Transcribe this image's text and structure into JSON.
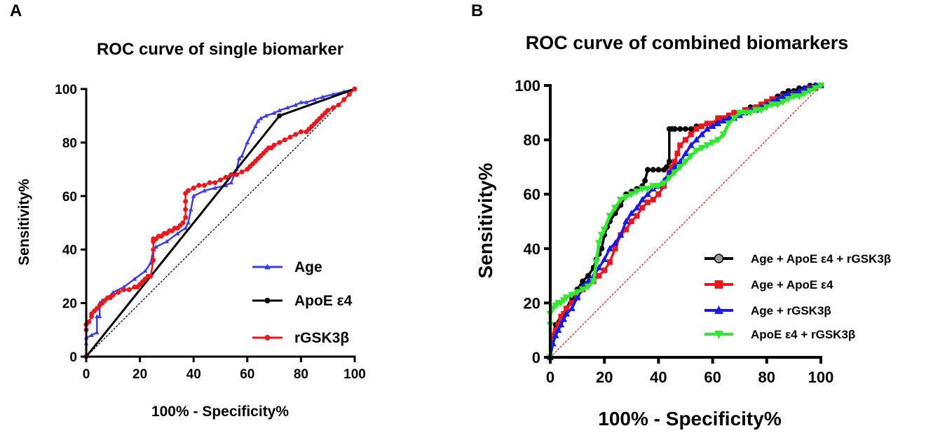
{
  "chart_data": [
    {
      "type": "line",
      "panel": "A",
      "title": "ROC curve of single biomarker",
      "xlabel": "100% - Specificity%",
      "ylabel": "Sensitivity%",
      "xlim": [
        0,
        100
      ],
      "ylim": [
        0,
        100
      ],
      "xticks": [
        "0",
        "20",
        "40",
        "60",
        "80",
        "100"
      ],
      "yticks": [
        "0",
        "20",
        "40",
        "60",
        "80",
        "100"
      ],
      "legend_position": "bottom-right",
      "reference_line": {
        "name": "chance",
        "x": [
          0,
          100
        ],
        "y": [
          0,
          100
        ],
        "color": "#000000"
      },
      "series": [
        {
          "name": "Age",
          "color": "#3c3ce6",
          "marker": "triangle",
          "x": [
            0,
            0,
            0,
            2,
            4,
            4,
            5,
            5,
            6,
            8,
            10,
            14,
            18,
            22,
            24,
            25,
            26,
            30,
            34,
            37,
            38,
            39,
            40,
            44,
            48,
            52,
            54,
            56,
            57,
            58,
            60,
            62,
            63,
            64,
            65,
            67,
            70,
            72,
            75,
            78,
            80,
            82,
            85,
            88,
            92,
            96,
            100
          ],
          "y": [
            0,
            5,
            7,
            8,
            9,
            15,
            15,
            20,
            21,
            22,
            24,
            26,
            29,
            32,
            35,
            40,
            41,
            43,
            46,
            48,
            50,
            55,
            60,
            62,
            63,
            64,
            65,
            70,
            74,
            75,
            80,
            84,
            86,
            88,
            89,
            90,
            91,
            92,
            93,
            94,
            95,
            95,
            96,
            97,
            98,
            99,
            100
          ]
        },
        {
          "name": "ApoE ε4",
          "color": "#000000",
          "marker": "circle",
          "x": [
            0,
            72,
            100
          ],
          "y": [
            0,
            90,
            100
          ]
        },
        {
          "name": "rGSK3β",
          "color": "#e8191e",
          "marker": "circle",
          "x": [
            0,
            0,
            0,
            1,
            2,
            2,
            3,
            4,
            5,
            6,
            7,
            8,
            9,
            10,
            12,
            14,
            16,
            18,
            19,
            20,
            21,
            22,
            23,
            24,
            25,
            25,
            25,
            25,
            26,
            27,
            28,
            29,
            30,
            31,
            32,
            33,
            34,
            35,
            36,
            37,
            37,
            37,
            37,
            38,
            40,
            42,
            44,
            46,
            48,
            50,
            52,
            54,
            56,
            58,
            60,
            61,
            62,
            63,
            64,
            65,
            66,
            67,
            68,
            69,
            70,
            72,
            74,
            76,
            78,
            80,
            82,
            83,
            84,
            85,
            86,
            87,
            88,
            89,
            90,
            92,
            94,
            96,
            98,
            100
          ],
          "y": [
            0,
            10,
            12,
            13,
            15,
            16,
            17,
            18,
            19,
            20,
            21,
            22,
            22,
            23,
            24,
            25,
            25,
            26,
            26,
            27,
            28,
            29,
            30,
            30,
            36,
            40,
            43,
            44,
            44,
            45,
            45,
            46,
            46,
            47,
            47,
            48,
            48,
            49,
            50,
            52,
            55,
            58,
            61,
            62,
            63,
            64,
            64,
            65,
            65,
            66,
            67,
            68,
            68,
            69,
            70,
            71,
            72,
            73,
            74,
            75,
            76,
            77,
            78,
            78,
            79,
            80,
            81,
            82,
            83,
            84,
            84,
            85,
            86,
            87,
            88,
            89,
            90,
            91,
            92,
            93,
            94,
            96,
            98,
            100
          ]
        }
      ]
    },
    {
      "type": "line",
      "panel": "B",
      "title": "ROC curve of combined biomarkers",
      "xlabel": "100% - Specificity%",
      "ylabel": "Sensitivity%",
      "xlim": [
        0,
        100
      ],
      "ylim": [
        0,
        100
      ],
      "xticks": [
        "0",
        "20",
        "40",
        "60",
        "80",
        "100"
      ],
      "yticks": [
        "0",
        "20",
        "40",
        "60",
        "80",
        "100"
      ],
      "legend_position": "bottom-right",
      "reference_line": {
        "name": "chance",
        "x": [
          0,
          100
        ],
        "y": [
          0,
          100
        ],
        "color": "#e8191e"
      },
      "series": [
        {
          "name": "Age + ApoE ε4 + rGSK3β",
          "color": "#000000",
          "marker": "circle",
          "x": [
            0,
            1,
            2,
            4,
            6,
            8,
            10,
            12,
            14,
            16,
            17,
            18,
            19,
            20,
            21,
            22,
            24,
            26,
            28,
            30,
            32,
            33,
            34,
            35,
            36,
            38,
            40,
            42,
            43,
            44,
            44,
            45,
            46,
            48,
            50,
            52,
            54,
            56,
            58,
            60,
            62,
            64,
            66,
            68,
            70,
            72,
            74,
            76,
            78,
            80,
            82,
            84,
            86,
            88,
            90,
            92,
            94,
            96,
            98,
            100
          ],
          "y": [
            0,
            8,
            12,
            15,
            18,
            22,
            25,
            28,
            30,
            33,
            36,
            38,
            40,
            45,
            48,
            50,
            53,
            56,
            60,
            61,
            62,
            62,
            63,
            65,
            69,
            69,
            69,
            69,
            70,
            72,
            84,
            84,
            84,
            84,
            84,
            84,
            85,
            85,
            86,
            86,
            87,
            88,
            89,
            90,
            90,
            91,
            92,
            92,
            93,
            94,
            95,
            96,
            97,
            98,
            98,
            99,
            99,
            100,
            100,
            100
          ]
        },
        {
          "name": "Age + ApoE ε4",
          "color": "#e8191e",
          "marker": "square",
          "x": [
            0,
            1,
            2,
            3,
            4,
            5,
            6,
            8,
            10,
            12,
            14,
            16,
            18,
            20,
            22,
            24,
            26,
            28,
            30,
            32,
            34,
            36,
            38,
            40,
            42,
            44,
            45,
            46,
            47,
            48,
            50,
            52,
            54,
            56,
            58,
            60,
            62,
            64,
            66,
            68,
            70,
            72,
            74,
            76,
            78,
            80,
            82,
            84,
            86,
            88,
            90,
            92,
            94,
            96,
            98,
            100
          ],
          "y": [
            0,
            8,
            10,
            12,
            15,
            16,
            18,
            20,
            22,
            25,
            27,
            28,
            30,
            32,
            35,
            40,
            45,
            47,
            50,
            52,
            55,
            57,
            58,
            60,
            63,
            68,
            70,
            72,
            75,
            78,
            80,
            82,
            84,
            85,
            86,
            86,
            88,
            88,
            89,
            90,
            90,
            91,
            91,
            92,
            93,
            94,
            95,
            95,
            96,
            96,
            97,
            97,
            98,
            99,
            99,
            100
          ]
        },
        {
          "name": "Age +  rGSK3β",
          "color": "#1919e6",
          "marker": "triangle",
          "x": [
            0,
            1,
            2,
            3,
            4,
            5,
            6,
            8,
            10,
            12,
            14,
            16,
            18,
            20,
            22,
            24,
            26,
            28,
            30,
            32,
            34,
            36,
            38,
            40,
            42,
            44,
            46,
            48,
            50,
            52,
            54,
            56,
            58,
            60,
            62,
            64,
            66,
            68,
            70,
            72,
            74,
            76,
            78,
            80,
            82,
            84,
            86,
            88,
            90,
            92,
            94,
            96,
            98,
            100
          ],
          "y": [
            0,
            5,
            8,
            10,
            12,
            14,
            16,
            18,
            22,
            26,
            28,
            30,
            33,
            36,
            40,
            42,
            45,
            50,
            53,
            55,
            58,
            60,
            62,
            63,
            65,
            68,
            70,
            72,
            75,
            78,
            80,
            82,
            84,
            85,
            86,
            87,
            88,
            88,
            89,
            90,
            91,
            91,
            92,
            93,
            94,
            95,
            96,
            97,
            97,
            98,
            99,
            99,
            100,
            100
          ]
        },
        {
          "name": "ApoE ε4 + rGSK3β",
          "color": "#33e633",
          "marker": "triangle-down",
          "x": [
            0,
            0,
            0,
            1,
            2,
            3,
            4,
            5,
            6,
            8,
            10,
            12,
            14,
            16,
            17,
            18,
            19,
            20,
            22,
            24,
            26,
            28,
            30,
            32,
            34,
            36,
            38,
            40,
            42,
            44,
            46,
            48,
            50,
            52,
            54,
            56,
            58,
            60,
            62,
            64,
            66,
            68,
            70,
            72,
            74,
            76,
            78,
            80,
            82,
            84,
            86,
            88,
            90,
            92,
            94,
            96,
            98,
            100
          ],
          "y": [
            0,
            12,
            16,
            18,
            19,
            20,
            20,
            21,
            22,
            23,
            24,
            25,
            26,
            28,
            35,
            42,
            45,
            47,
            52,
            55,
            58,
            59,
            60,
            61,
            62,
            62,
            63,
            63,
            64,
            66,
            68,
            70,
            72,
            74,
            76,
            77,
            78,
            79,
            80,
            82,
            86,
            88,
            90,
            90,
            90,
            91,
            91,
            92,
            93,
            93,
            94,
            95,
            96,
            96,
            97,
            98,
            99,
            100
          ]
        }
      ]
    }
  ]
}
